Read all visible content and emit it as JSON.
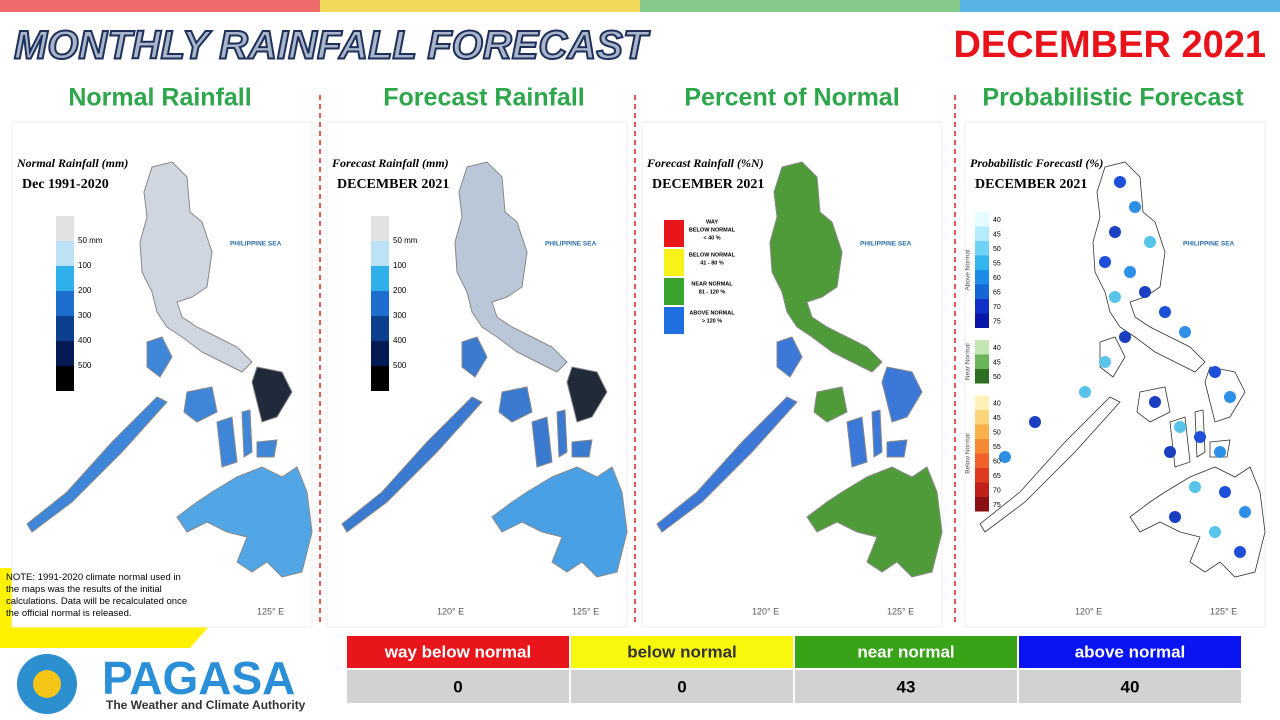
{
  "header": {
    "title": "MONTHLY RAINFALL FORECAST",
    "period": "DECEMBER 2021"
  },
  "panels": [
    {
      "kind": "normal",
      "title": "Normal Rainfall",
      "map_title": "Normal Rainfall (mm)",
      "map_subtitle": "Dec 1991-2020",
      "legend": [
        "50 mm",
        "100",
        "200",
        "300",
        "400",
        "500"
      ],
      "sea_label": "PHILIPPINE SEA",
      "lon_labels": [
        "125° E"
      ]
    },
    {
      "kind": "forecast",
      "title": "Forecast Rainfall",
      "map_title": "Forecast Rainfall (mm)",
      "map_subtitle": "DECEMBER 2021",
      "legend": [
        "50 mm",
        "100",
        "200",
        "300",
        "400",
        "500"
      ],
      "sea_label": "PHILIPPINE SEA",
      "lon_labels": [
        "120° E",
        "125° E"
      ]
    },
    {
      "kind": "percent",
      "title": "Percent of Normal",
      "map_title": "Forecast Rainfall (%N)",
      "map_subtitle": "DECEMBER 2021",
      "legend": [
        [
          "WAY",
          "BELOW NORMAL",
          "< 40 %"
        ],
        [
          "BELOW NORMAL",
          "41 - 80 %"
        ],
        [
          "NEAR NORMAL",
          "81 - 120 %"
        ],
        [
          "ABOVE NORMAL",
          "> 120 %"
        ]
      ],
      "sea_label": "PHILIPPINE SEA",
      "lon_labels": [
        "120° E",
        "125° E"
      ]
    },
    {
      "kind": "prob",
      "title": "Probabilistic Forecast",
      "map_title": "Probabilistic Forecastl (%)",
      "map_subtitle": "DECEMBER 2021",
      "legend": [
        {
          "name": "Above Normal",
          "levels": [
            40,
            45,
            50,
            55,
            60,
            65,
            70,
            75
          ]
        },
        {
          "name": "Near Normal",
          "levels": [
            40,
            45,
            50
          ]
        },
        {
          "name": "Below Normal",
          "levels": [
            40,
            45,
            50,
            55,
            60,
            65,
            70,
            75
          ]
        }
      ],
      "sea_label": "PHILIPPINE SEA",
      "lon_labels": [
        "120° E",
        "125° E"
      ]
    }
  ],
  "note": "NOTE: 1991-2020 climate normal used in the maps was the results of the initial calculations. Data will be recalculated once the official normal is released.",
  "table": {
    "columns": [
      "way below normal",
      "below normal",
      "near normal",
      "above normal"
    ],
    "values": [
      0,
      0,
      43,
      40
    ]
  },
  "logo": {
    "name": "PAGASA",
    "tagline": "The Weather and Climate Authority"
  }
}
